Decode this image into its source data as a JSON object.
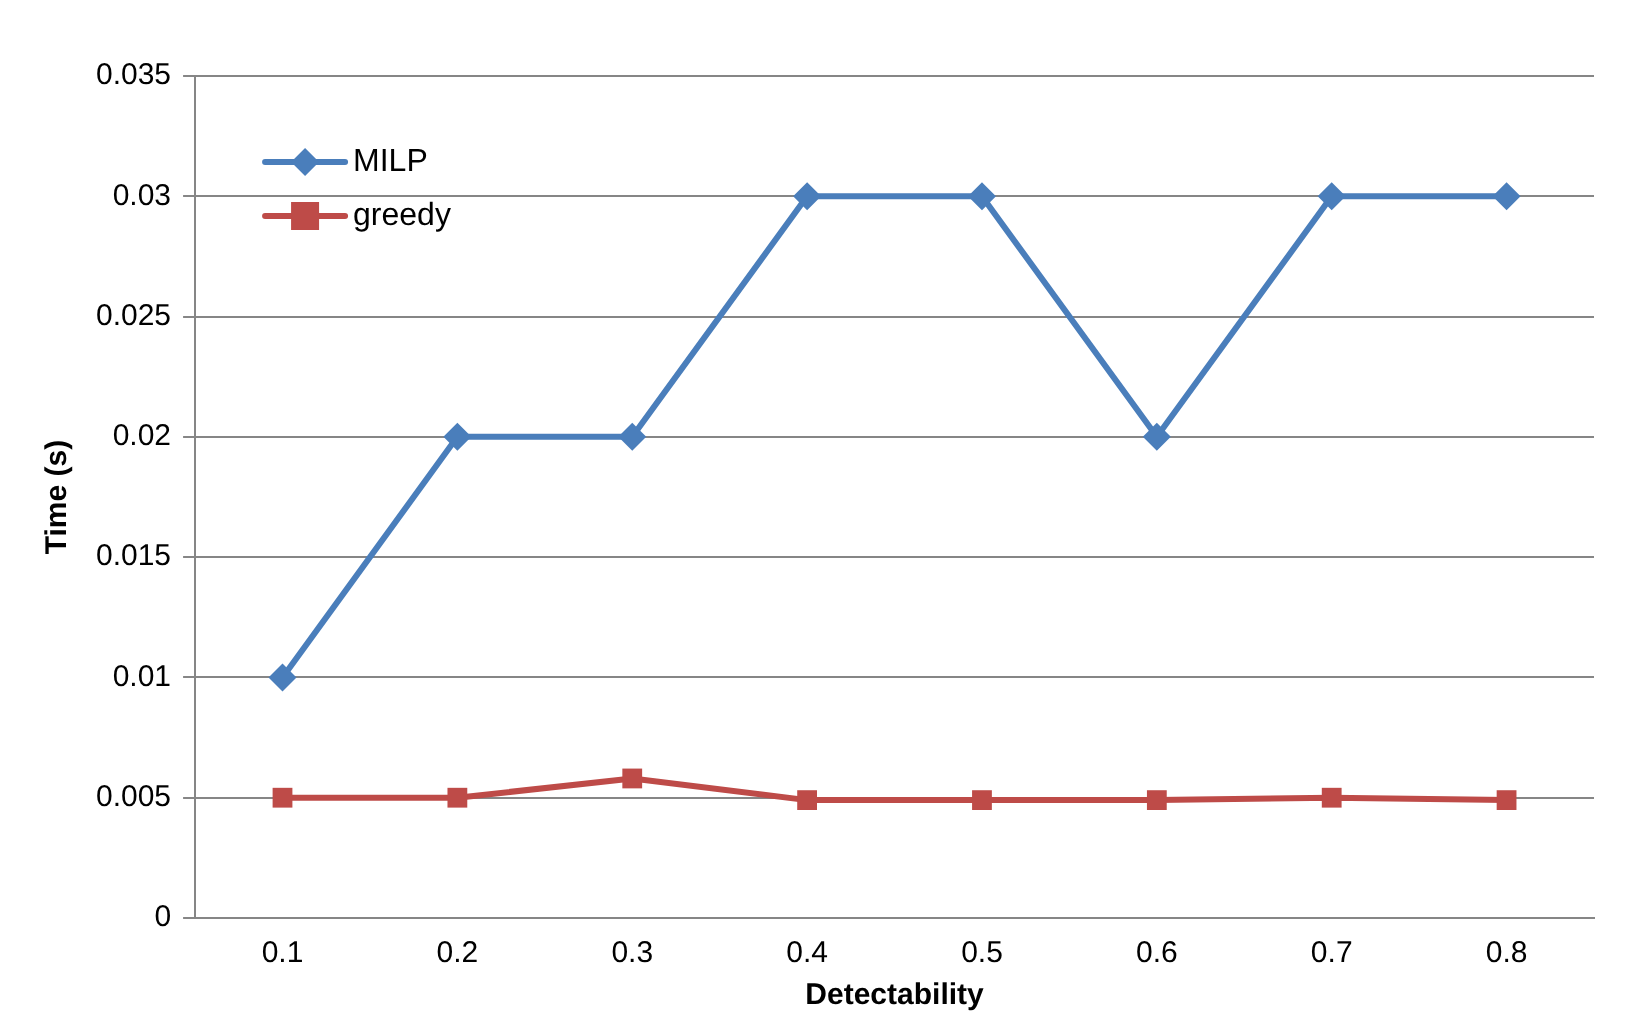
{
  "chart_data": {
    "type": "line",
    "xlabel": "Detectability",
    "ylabel": "Time (s)",
    "categories": [
      "0.1",
      "0.2",
      "0.3",
      "0.4",
      "0.5",
      "0.6",
      "0.7",
      "0.8"
    ],
    "series": [
      {
        "name": "MILP",
        "color": "#4a7ebb",
        "marker": "diamond",
        "values": [
          0.01,
          0.02,
          0.02,
          0.03,
          0.03,
          0.02,
          0.03,
          0.03
        ]
      },
      {
        "name": "greedy",
        "color": "#be4b48",
        "marker": "square",
        "values": [
          0.005,
          0.005,
          0.0058,
          0.0049,
          0.0049,
          0.0049,
          0.005,
          0.0049
        ]
      }
    ],
    "ylim": [
      0,
      0.035
    ],
    "yticks": [
      0,
      0.005,
      0.01,
      0.015,
      0.02,
      0.025,
      0.03,
      0.035
    ],
    "grid": "y",
    "legend": "top left"
  }
}
